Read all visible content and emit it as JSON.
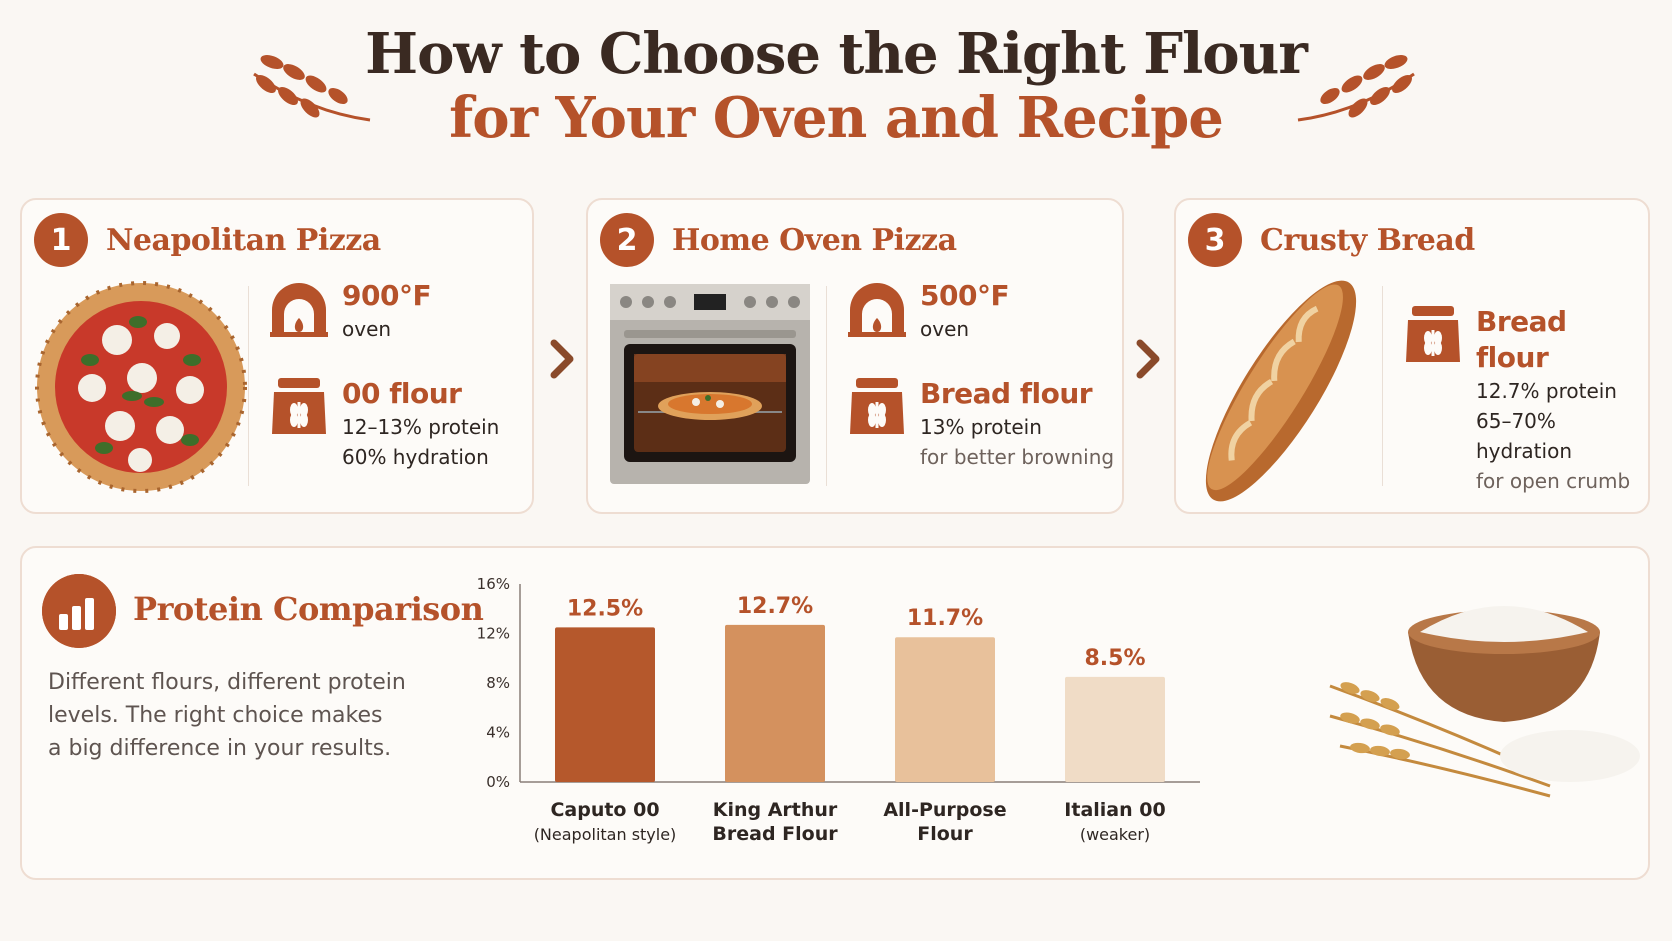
{
  "title": {
    "line1": "How to Choose the Right Flour",
    "line2": "for Your Oven and Recipe"
  },
  "colors": {
    "accent": "#b5522a",
    "heading": "#3a2a22",
    "bar1": "#b5582c",
    "bar2": "#d4915e",
    "bar3": "#e8c19b",
    "bar4": "#f0dcc6"
  },
  "cards": [
    {
      "number": "1",
      "title": "Neapolitan Pizza",
      "image": "margherita-pizza",
      "temp": {
        "value": "900°F",
        "label": "oven",
        "icon": "pizza-oven-icon"
      },
      "flour": {
        "value": "00 flour",
        "lines": [
          "12–13% protein",
          "60% hydration"
        ],
        "icon": "flour-bag-icon"
      }
    },
    {
      "number": "2",
      "title": "Home Oven Pizza",
      "image": "home-oven-with-pizza",
      "temp": {
        "value": "500°F",
        "label": "oven",
        "icon": "pizza-oven-icon"
      },
      "flour": {
        "value": "Bread flour",
        "lines": [
          "13% protein",
          "for better browning"
        ],
        "icon": "flour-bag-icon"
      }
    },
    {
      "number": "3",
      "title": "Crusty Bread",
      "image": "baguette",
      "flour": {
        "value": "Bread flour",
        "lines": [
          "12.7% protein",
          "65–70% hydration",
          "for open crumb"
        ],
        "icon": "flour-bag-icon"
      }
    }
  ],
  "comparison": {
    "title": "Protein Comparison",
    "icon": "bar-chart-icon",
    "description_lines": [
      "Different flours, different protein",
      "levels. The right choice makes",
      "a big difference in your results."
    ],
    "image": "flour-bowl-with-wheat"
  },
  "chart_data": {
    "type": "bar",
    "title": "",
    "xlabel": "",
    "ylabel": "",
    "ylim": [
      0,
      16
    ],
    "yticks": [
      0,
      4,
      8,
      12,
      16
    ],
    "ytick_labels": [
      "0%",
      "4%",
      "8%",
      "12%",
      "16%"
    ],
    "grid": false,
    "categories": [
      "Caputo 00",
      "King Arthur Bread Flour",
      "All-Purpose Flour",
      "Italian 00"
    ],
    "category_label_lines": [
      [
        "Caputo 00",
        "(Neapolitan style)"
      ],
      [
        "King Arthur",
        "Bread Flour"
      ],
      [
        "All-Purpose",
        "Flour"
      ],
      [
        "Italian 00",
        "(weaker)"
      ]
    ],
    "values": [
      12.5,
      12.7,
      11.7,
      8.5
    ],
    "data_labels": [
      "12.5%",
      "12.7%",
      "11.7%",
      "8.5%"
    ]
  }
}
